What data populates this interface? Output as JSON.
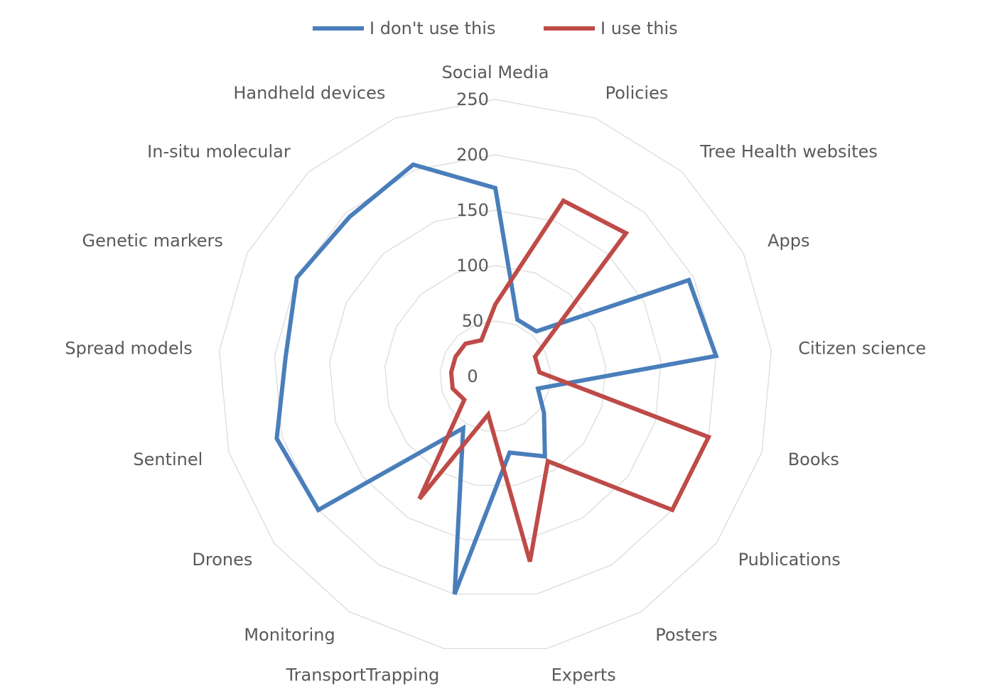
{
  "chart_data": {
    "type": "radar",
    "categories": [
      "Social Media",
      "Policies",
      "Tree Health websites",
      "Apps",
      "Citizen science",
      "Books",
      "Publications",
      "Posters",
      "Experts",
      "TransportTrapping",
      "Monitoring",
      "Drones",
      "Sentinel",
      "Spread models",
      "Genetic markers",
      "In-situ molecular",
      "Handheld devices"
    ],
    "rlim": [
      0,
      250
    ],
    "ticks": [
      0,
      50,
      100,
      150,
      200,
      250
    ],
    "grid": true,
    "legend_position": "top",
    "series": [
      {
        "name": "I don't use this",
        "color": "#4a7ebb",
        "values": [
          170,
          55,
          55,
          195,
          200,
          40,
          55,
          85,
          70,
          200,
          55,
          200,
          205,
          190,
          200,
          195,
          205
        ]
      },
      {
        "name": "I use this",
        "color": "#be4b48",
        "values": [
          65,
          170,
          175,
          40,
          40,
          200,
          200,
          90,
          170,
          35,
          130,
          35,
          40,
          40,
          40,
          40,
          35
        ]
      }
    ]
  }
}
